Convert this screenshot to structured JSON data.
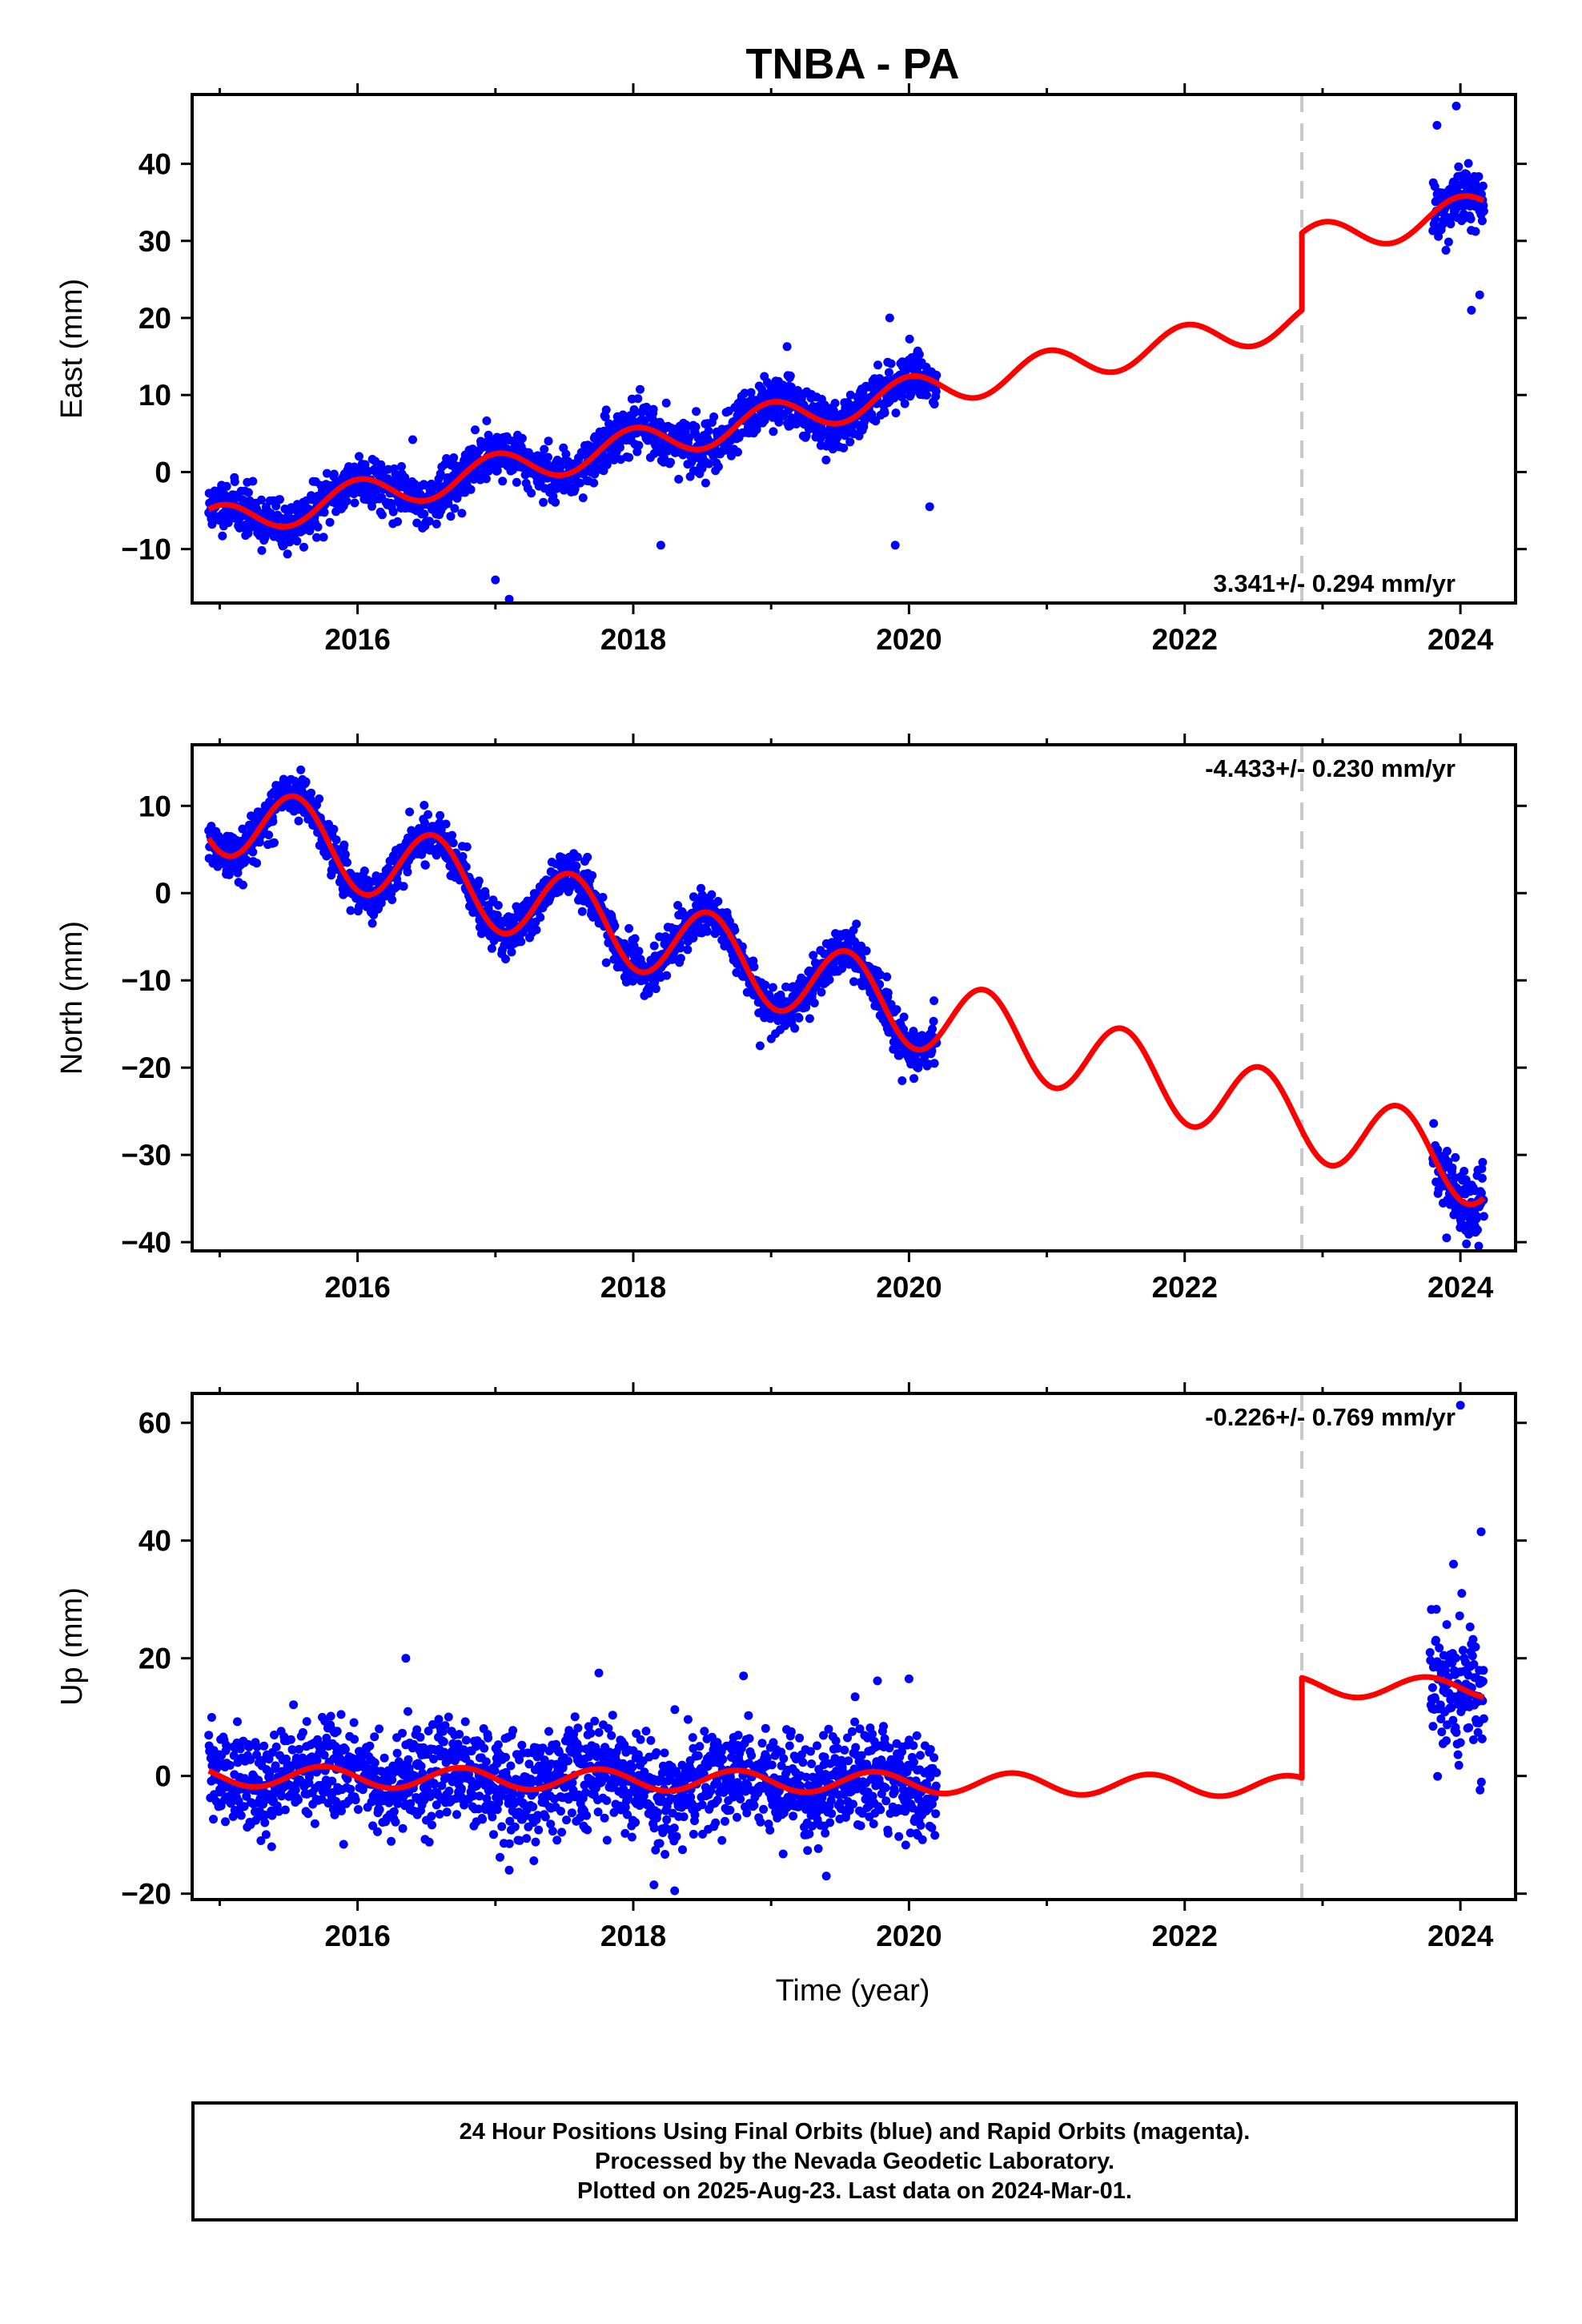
{
  "title": "TNBA - PA",
  "x_axis_title": "Time (year)",
  "caption": {
    "line1": "24 Hour Positions Using Final Orbits (blue) and Rapid Orbits (magenta).",
    "line2": "Processed by the Nevada Geodetic Laboratory.",
    "line3": "Plotted on 2025-Aug-23. Last data on 2024-Mar-01."
  },
  "colors": {
    "data": "#0000ff",
    "model": "#ff0000",
    "step": "#c8c8c8",
    "frame": "#000000"
  },
  "chart_data": [
    {
      "type": "scatter",
      "ylabel": "East (mm)",
      "rate_label": "3.341+/- 0.294 mm/yr",
      "rate_position": "bottom-right",
      "xlim": [
        2014.8,
        2024.4
      ],
      "ylim": [
        -17,
        49
      ],
      "xticks": [
        2016,
        2018,
        2020,
        2022,
        2024
      ],
      "yticks": [
        -10,
        0,
        10,
        20,
        30,
        40
      ],
      "equipment_change_x": 2022.85,
      "model": {
        "anchor_x": 2015.0,
        "anchor_y": -6.5,
        "rate": 3.341,
        "annual_amplitude": 2.2,
        "annual_peak": 2016.0,
        "offset_x": 2022.85,
        "offset": 10.0
      },
      "series": {
        "segments": [
          {
            "x_start": 2014.92,
            "x_end": 2020.2,
            "n": 1700,
            "noise": 1.6,
            "seed": 11
          },
          {
            "x_start": 2023.8,
            "x_end": 2024.17,
            "n": 130,
            "noise": 2.0,
            "seed": 12
          }
        ]
      },
      "outliers": [
        {
          "x": 2017.1,
          "y": -16.5
        },
        {
          "x": 2017.0,
          "y": -14
        },
        {
          "x": 2019.9,
          "y": -9.5
        },
        {
          "x": 2019.86,
          "y": 20
        },
        {
          "x": 2020.15,
          "y": -4.5
        },
        {
          "x": 2023.97,
          "y": 47.5
        },
        {
          "x": 2023.83,
          "y": 45
        },
        {
          "x": 2024.08,
          "y": 21
        },
        {
          "x": 2024.14,
          "y": 23
        },
        {
          "x": 2018.2,
          "y": -9.5
        },
        {
          "x": 2016.4,
          "y": 4.2
        }
      ]
    },
    {
      "type": "scatter",
      "ylabel": "North (mm)",
      "rate_label": "-4.433+/- 0.230 mm/yr",
      "rate_position": "top-right",
      "xlim": [
        2014.8,
        2024.4
      ],
      "ylim": [
        -41,
        17
      ],
      "xticks": [
        2016,
        2018,
        2020,
        2022,
        2024
      ],
      "yticks": [
        -40,
        -30,
        -20,
        -10,
        0,
        10
      ],
      "equipment_change_x": 2022.85,
      "model": {
        "anchor_x": 2015.0,
        "anchor_y": 9.0,
        "rate": -4.433,
        "annual_amplitude": 4.5,
        "annual_peak": 2015.55,
        "offset_x": 2022.85,
        "offset": 0
      },
      "series": {
        "segments": [
          {
            "x_start": 2014.92,
            "x_end": 2020.2,
            "n": 1700,
            "noise": 1.3,
            "seed": 21
          },
          {
            "x_start": 2023.8,
            "x_end": 2024.17,
            "n": 130,
            "noise": 1.7,
            "seed": 22
          }
        ]
      },
      "outliers": [
        {
          "x": 2019.95,
          "y": -21.5
        },
        {
          "x": 2018.92,
          "y": -17.5
        },
        {
          "x": 2017.05,
          "y": -6.5
        },
        {
          "x": 2015.95,
          "y": -2
        },
        {
          "x": 2023.9,
          "y": -39.5
        }
      ]
    },
    {
      "type": "scatter",
      "ylabel": "Up (mm)",
      "rate_label": "-0.226+/- 0.769 mm/yr",
      "rate_position": "top-right",
      "xlim": [
        2014.8,
        2024.4
      ],
      "ylim": [
        -21,
        65
      ],
      "xticks": [
        2016,
        2018,
        2020,
        2022,
        2024
      ],
      "yticks": [
        -20,
        0,
        20,
        40,
        60
      ],
      "equipment_change_x": 2022.85,
      "model": {
        "anchor_x": 2015.0,
        "anchor_y": 0.0,
        "rate": -0.226,
        "annual_amplitude": 1.8,
        "annual_peak": 2015.75,
        "offset_x": 2022.85,
        "offset": 17.0
      },
      "series": {
        "segments": [
          {
            "x_start": 2014.92,
            "x_end": 2020.2,
            "n": 1700,
            "noise": 4.3,
            "seed": 31
          },
          {
            "x_start": 2023.78,
            "x_end": 2024.17,
            "n": 130,
            "noise": 6.0,
            "seed": 32
          }
        ]
      },
      "outliers": [
        {
          "x": 2024.0,
          "y": 63
        },
        {
          "x": 2024.15,
          "y": 41.5
        },
        {
          "x": 2023.95,
          "y": 36
        },
        {
          "x": 2018.15,
          "y": -18.5
        },
        {
          "x": 2018.3,
          "y": -19.5
        },
        {
          "x": 2017.1,
          "y": -16
        },
        {
          "x": 2019.4,
          "y": -17
        },
        {
          "x": 2016.35,
          "y": 20
        },
        {
          "x": 2017.75,
          "y": 17.5
        },
        {
          "x": 2018.8,
          "y": 17
        },
        {
          "x": 2020.0,
          "y": 16.5
        }
      ]
    }
  ]
}
